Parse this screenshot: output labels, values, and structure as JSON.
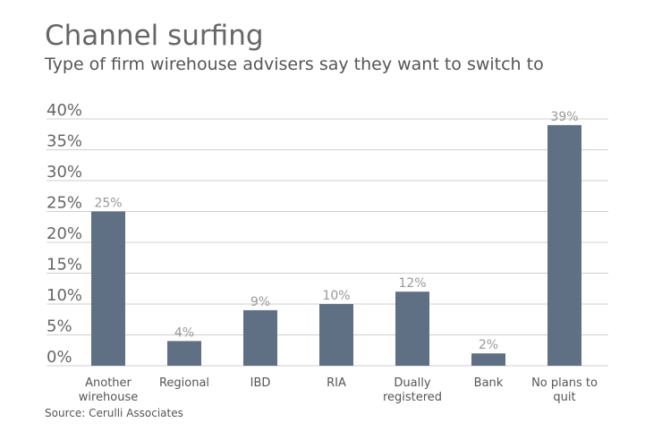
{
  "chart_data": {
    "type": "bar",
    "title": "Channel surfing",
    "subtitle": "Type of firm wirehouse advisers say they want to switch to",
    "categories": [
      [
        "Another",
        "wirehouse"
      ],
      [
        "Regional"
      ],
      [
        "IBD"
      ],
      [
        "RIA"
      ],
      [
        "Dually",
        "registered"
      ],
      [
        "Bank"
      ],
      [
        "No plans to",
        "quit"
      ]
    ],
    "values": [
      25,
      4,
      9,
      10,
      12,
      2,
      39
    ],
    "value_labels": [
      "25%",
      "4%",
      "9%",
      "10%",
      "12%",
      "2%",
      "39%"
    ],
    "color": "#5f6f84",
    "ylim": [
      0,
      40
    ],
    "yticks": [
      {
        "value": 0,
        "label": "0%"
      },
      {
        "value": 5,
        "label": "5%"
      },
      {
        "value": 10,
        "label": "10%"
      },
      {
        "value": 15,
        "label": "15%"
      },
      {
        "value": 20,
        "label": "20%"
      },
      {
        "value": 25,
        "label": "25%"
      },
      {
        "value": 30,
        "label": "30%"
      },
      {
        "value": 35,
        "label": "35%"
      },
      {
        "value": 40,
        "label": "40%"
      }
    ],
    "grid": true,
    "source": "Source: Cerulli Associates"
  }
}
